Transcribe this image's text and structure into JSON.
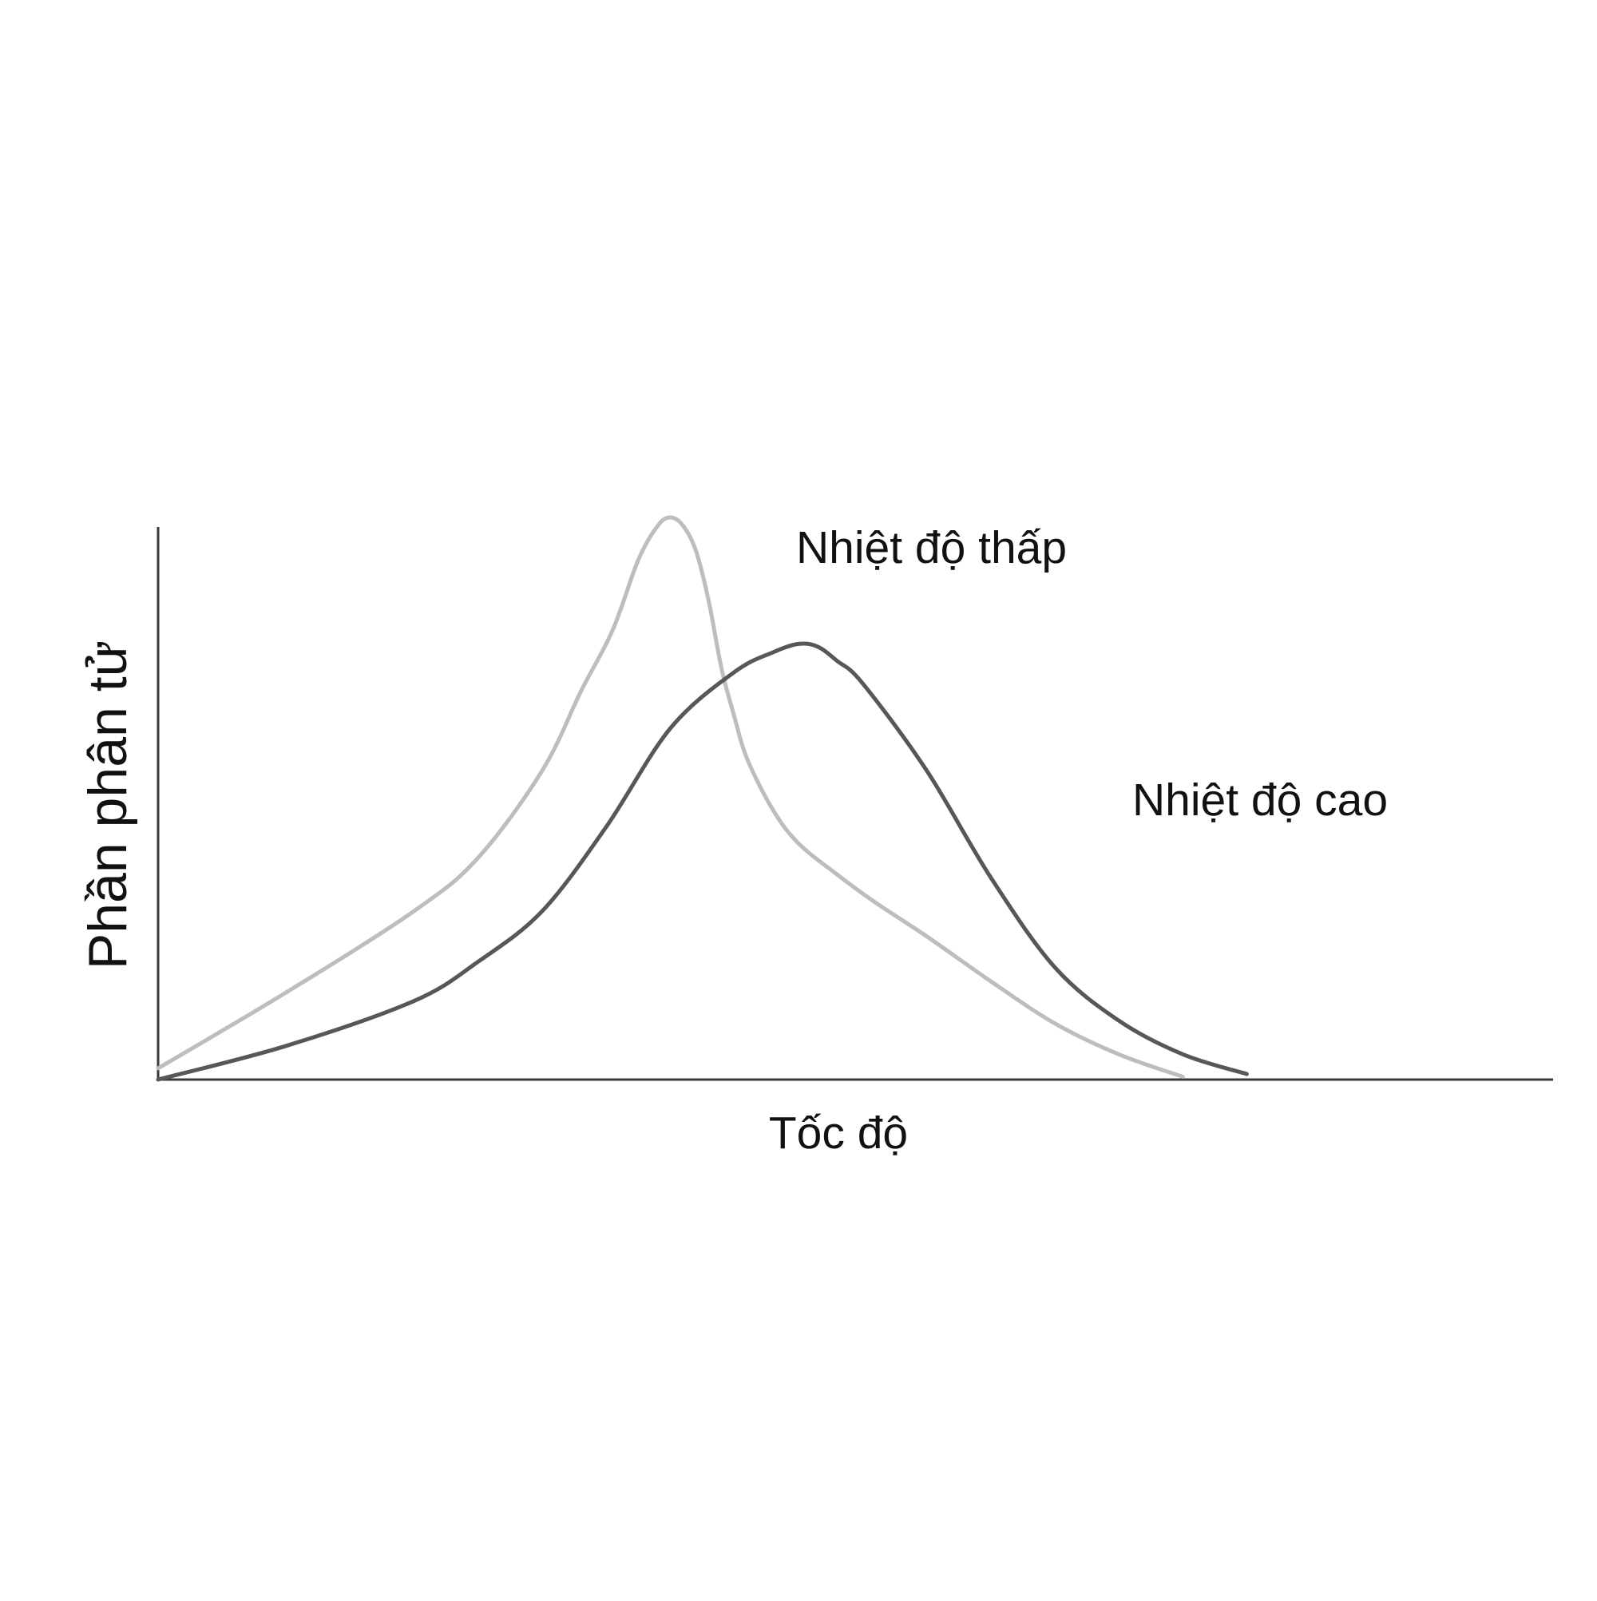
{
  "chart_data": {
    "type": "line",
    "title": "",
    "xlabel": "Tốc độ",
    "ylabel": "Phần phân tử",
    "xlim": [
      0,
      100
    ],
    "ylim": [
      0,
      100
    ],
    "grid": false,
    "legend": "none",
    "series": [
      {
        "name": "Nhiệt độ thấp",
        "color": "#bdbdbd",
        "x": [
          0,
          10,
          20,
          25,
          30,
          33,
          35.5,
          37.5,
          39,
          40,
          41,
          42,
          43,
          44,
          45,
          46,
          48,
          50,
          53,
          56,
          60,
          65,
          70,
          75,
          80
        ],
        "y": [
          2,
          15.5,
          30,
          39.5,
          55,
          69,
          80,
          92.5,
          98.5,
          100,
          98.5,
          94,
          85,
          73,
          64.5,
          57,
          48,
          42,
          36.5,
          31.5,
          25.5,
          17.5,
          10,
          4.5,
          0.5
        ]
      },
      {
        "name": "Nhiệt độ cao",
        "color": "#575757",
        "x": [
          0,
          10,
          20,
          25,
          30,
          35,
          40,
          45,
          48,
          50,
          51.5,
          53,
          55,
          60,
          65,
          70,
          75,
          80,
          85
        ],
        "y": [
          0,
          6,
          14,
          21,
          30,
          45,
          62.5,
          72.5,
          76,
          77.5,
          77,
          74.5,
          70.5,
          55,
          36,
          20,
          10.5,
          4.5,
          1
        ]
      }
    ]
  }
}
